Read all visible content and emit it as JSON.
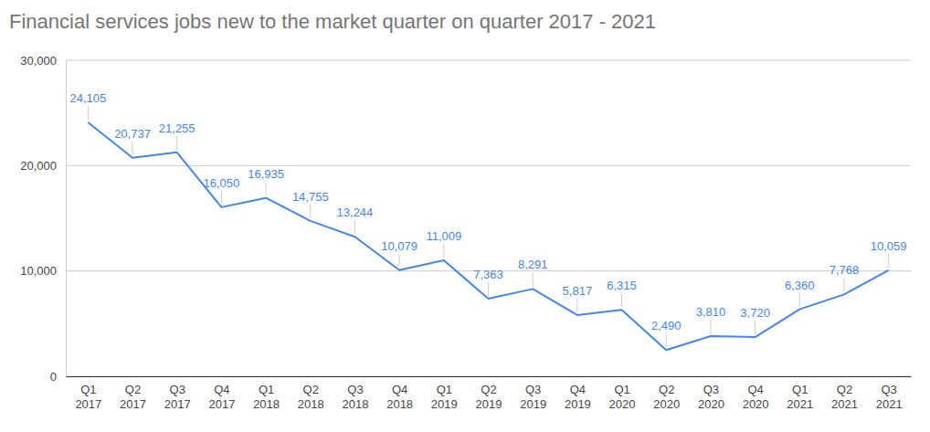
{
  "chart_data": {
    "type": "line",
    "title": "Financial services jobs new to the market quarter on quarter 2017 - 2021",
    "categories": [
      "Q1 2017",
      "Q2 2017",
      "Q3 2017",
      "Q4 2017",
      "Q1 2018",
      "Q2 2018",
      "Q3 2018",
      "Q4 2018",
      "Q1 2019",
      "Q2 2019",
      "Q3 2019",
      "Q4 2019",
      "Q1 2020",
      "Q2 2020",
      "Q3 2020",
      "Q4 2020",
      "Q1 2021",
      "Q2 2021",
      "Q3 2021"
    ],
    "values": [
      24105,
      20737,
      21255,
      16050,
      16935,
      14755,
      13244,
      10079,
      11009,
      7363,
      8291,
      5817,
      6315,
      2490,
      3810,
      3720,
      6360,
      7768,
      10059
    ],
    "value_labels": [
      "24,105",
      "20,737",
      "21,255",
      "16,050",
      "16,935",
      "14,755",
      "13,244",
      "10,079",
      "11,009",
      "7,363",
      "8,291",
      "5,817",
      "6,315",
      "2,490",
      "3,810",
      "3,720",
      "6,360",
      "7,768",
      "10,059"
    ],
    "color": "#4285f4",
    "ylim": [
      0,
      30000
    ],
    "yticks": [
      0,
      {
        "value": 10000,
        "label": "10,000"
      },
      {
        "value": 20000,
        "label": "20,000"
      },
      {
        "value": 30000,
        "label": "30,000"
      }
    ],
    "grid": true,
    "data_labels": true
  }
}
